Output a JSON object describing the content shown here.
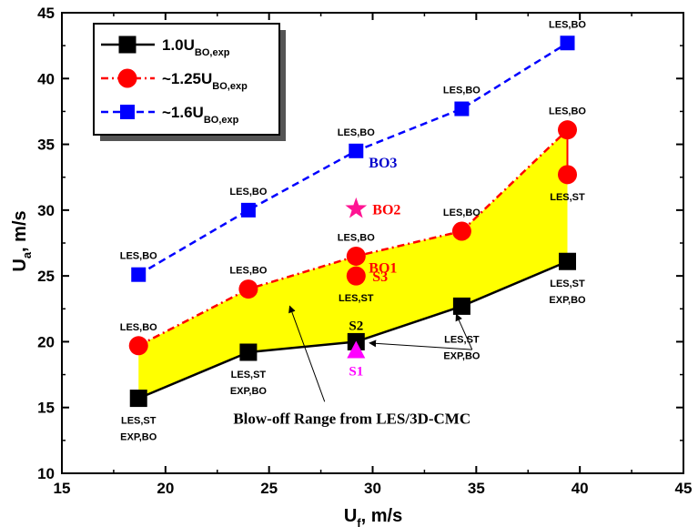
{
  "chart_data": {
    "type": "scatter",
    "xlabel": "U",
    "xlabel_sub": "f",
    "xlabel_unit": ", m/s",
    "ylabel": "U",
    "ylabel_sub": "a",
    "ylabel_unit": ", m/s",
    "xlim": [
      15,
      45
    ],
    "ylim": [
      10,
      45
    ],
    "xticks": [
      "15",
      "20",
      "25",
      "30",
      "35",
      "40",
      "45"
    ],
    "yticks": [
      "10",
      "15",
      "20",
      "25",
      "30",
      "35",
      "40",
      "45"
    ],
    "grid": false,
    "legend_position": "top-left",
    "series": [
      {
        "name": "1.0U",
        "name_sub": "BO,exp",
        "color": "#000000",
        "marker": "square",
        "line": "solid",
        "x": [
          18.7,
          24.0,
          29.2,
          34.3,
          39.4
        ],
        "y": [
          15.7,
          19.2,
          20.0,
          22.7,
          26.1
        ]
      },
      {
        "name": "~1.25U",
        "name_sub": "BO,exp",
        "color": "#ff0000",
        "marker": "circle",
        "line": "dash-dot",
        "x": [
          18.7,
          24.0,
          29.2,
          29.2,
          34.3,
          39.4,
          39.4
        ],
        "y": [
          19.7,
          24.0,
          26.5,
          25.0,
          28.4,
          36.1,
          32.7
        ]
      },
      {
        "name": "~1.6U",
        "name_sub": "BO,exp",
        "color": "#0000ff",
        "marker": "square",
        "line": "dashed",
        "x": [
          18.7,
          24.0,
          29.2,
          34.3,
          39.4
        ],
        "y": [
          25.1,
          30.0,
          34.5,
          37.7,
          42.7
        ]
      }
    ],
    "shaded_region": {
      "color": "#ffff00",
      "upper": {
        "x": [
          18.7,
          24.0,
          29.2,
          34.3,
          39.4
        ],
        "y": [
          19.7,
          24.0,
          26.5,
          28.4,
          36.1
        ]
      },
      "lower": {
        "x": [
          18.7,
          24.0,
          29.2,
          34.3,
          39.4
        ],
        "y": [
          15.7,
          19.2,
          20.0,
          22.7,
          26.1
        ]
      }
    },
    "special_markers": [
      {
        "label": "S1",
        "marker": "triangle",
        "color": "#ff00ff",
        "x": 29.2,
        "y": 19.3
      },
      {
        "label": "BO2",
        "marker": "star",
        "color": "#ff1493",
        "x": 29.2,
        "y": 30.1
      }
    ],
    "point_labels": [
      {
        "text": "LES,BO",
        "x": 18.7,
        "y": 25.1,
        "pos": "above"
      },
      {
        "text": "LES,BO",
        "x": 24.0,
        "y": 30.0,
        "pos": "above"
      },
      {
        "text": "LES,BO",
        "x": 29.2,
        "y": 34.5,
        "pos": "above"
      },
      {
        "text": "LES,BO",
        "x": 34.3,
        "y": 37.7,
        "pos": "above"
      },
      {
        "text": "LES,BO",
        "x": 39.4,
        "y": 42.7,
        "pos": "above"
      },
      {
        "text": "LES,BO",
        "x": 18.7,
        "y": 19.7,
        "pos": "above"
      },
      {
        "text": "LES,BO",
        "x": 24.0,
        "y": 24.0,
        "pos": "above"
      },
      {
        "text": "LES,BO",
        "x": 29.2,
        "y": 26.5,
        "pos": "above"
      },
      {
        "text": "LES,BO",
        "x": 34.3,
        "y": 28.4,
        "pos": "above"
      },
      {
        "text": "LES,BO",
        "x": 39.4,
        "y": 36.1,
        "pos": "above"
      },
      {
        "text": "LES,ST",
        "x": 29.2,
        "y": 25.0,
        "pos": "below"
      },
      {
        "text": "LES,ST",
        "x": 39.4,
        "y": 32.7,
        "pos": "below"
      },
      {
        "text": "LES,ST",
        "x": 18.7,
        "y": 15.7,
        "pos": "below"
      },
      {
        "text": "EXP,BO",
        "x": 18.7,
        "y": 15.7,
        "pos": "below2"
      },
      {
        "text": "LES,ST",
        "x": 24.0,
        "y": 19.2,
        "pos": "below"
      },
      {
        "text": "EXP,BO",
        "x": 24.0,
        "y": 19.2,
        "pos": "below2"
      },
      {
        "text": "LES,ST",
        "x": 39.4,
        "y": 26.1,
        "pos": "below"
      },
      {
        "text": "EXP,BO",
        "x": 39.4,
        "y": 26.1,
        "pos": "below2"
      },
      {
        "text": "LES,ST",
        "x": 34.3,
        "y": 22.7,
        "pos": "below-far"
      },
      {
        "text": "EXP,BO",
        "x": 34.3,
        "y": 22.7,
        "pos": "below-far2"
      }
    ],
    "annotations": [
      {
        "text": "BO3",
        "x": 29.2,
        "y": 34.5,
        "color": "#0000cc",
        "pos": "right-below"
      },
      {
        "text": "BO1",
        "x": 29.2,
        "y": 26.5,
        "color": "#ff0000",
        "pos": "right-below"
      },
      {
        "text": "S3",
        "x": 29.2,
        "y": 25.0,
        "color": "#ff0000",
        "pos": "right"
      },
      {
        "text": "BO2",
        "x": 29.2,
        "y": 30.1,
        "color": "#ff0000",
        "pos": "right"
      },
      {
        "text": "S2",
        "x": 29.2,
        "y": 20.0,
        "color": "#000000",
        "pos": "above"
      },
      {
        "text": "S1",
        "x": 29.2,
        "y": 19.3,
        "color": "#ff00ff",
        "pos": "below"
      }
    ],
    "range_note": {
      "text": "Blow-off Range from LES/3D-CMC",
      "x": 29.0,
      "y": 14.2,
      "arrow_to": {
        "x": 26.0,
        "y": 22.7
      }
    },
    "side_arrows": {
      "from": {
        "x": 34.8,
        "y": 19.4
      },
      "to": [
        {
          "x": 34.3,
          "y": 22.7
        },
        {
          "x": 29.5,
          "y": 19.9
        }
      ]
    }
  }
}
